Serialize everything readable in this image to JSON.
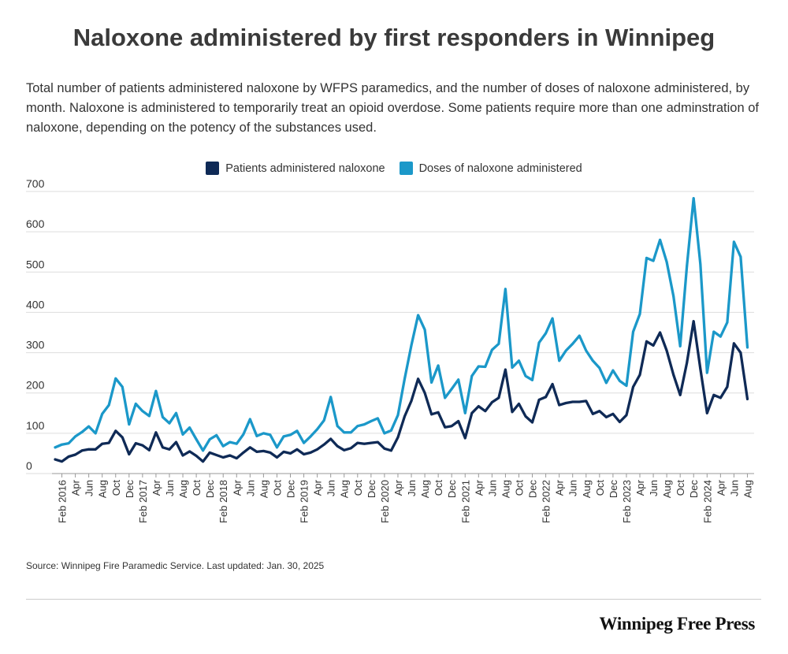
{
  "header": {
    "title": "Naloxone administered by first responders in Winnipeg",
    "subtitle": "Total number of patients administered naloxone by WFPS paramedics, and the number of doses of naloxone administered, by month.  Naloxone is administered to temporarily treat an opioid overdose. Some patients require more than one adminstration of naloxone, depending on the potency of the substances used."
  },
  "footer": {
    "source": "Source: Winnipeg Fire Paramedic Service. Last updated: Jan. 30, 2025",
    "brand": "Winnipeg Free Press"
  },
  "colors": {
    "patients": "#0f2a56",
    "doses": "#1b98c9",
    "grid": "#dddddd"
  },
  "chart_data": {
    "type": "line",
    "title": "Naloxone administered by first responders in Winnipeg",
    "xlabel": "",
    "ylabel": "",
    "ylim": [
      0,
      700
    ],
    "yticks": [
      0,
      100,
      200,
      300,
      400,
      500,
      600,
      700
    ],
    "grid": true,
    "legend_position": "top-center",
    "x_start": "2016-01",
    "x_end": "2024-09",
    "tick_labels": [
      {
        "month": "2016-02",
        "label": "Feb 2016"
      },
      {
        "month": "2016-04",
        "label": "Apr"
      },
      {
        "month": "2016-06",
        "label": "Jun"
      },
      {
        "month": "2016-08",
        "label": "Aug"
      },
      {
        "month": "2016-10",
        "label": "Oct"
      },
      {
        "month": "2016-12",
        "label": "Dec"
      },
      {
        "month": "2017-02",
        "label": "Feb 2017"
      },
      {
        "month": "2017-04",
        "label": "Apr"
      },
      {
        "month": "2017-06",
        "label": "Jun"
      },
      {
        "month": "2017-08",
        "label": "Aug"
      },
      {
        "month": "2017-10",
        "label": "Oct"
      },
      {
        "month": "2017-12",
        "label": "Dec"
      },
      {
        "month": "2018-02",
        "label": "Feb 2018"
      },
      {
        "month": "2018-04",
        "label": "Apr"
      },
      {
        "month": "2018-06",
        "label": "Jun"
      },
      {
        "month": "2018-08",
        "label": "Aug"
      },
      {
        "month": "2018-10",
        "label": "Oct"
      },
      {
        "month": "2018-12",
        "label": "Dec"
      },
      {
        "month": "2019-02",
        "label": "Feb 2019"
      },
      {
        "month": "2019-04",
        "label": "Apr"
      },
      {
        "month": "2019-06",
        "label": "Jun"
      },
      {
        "month": "2019-08",
        "label": "Aug"
      },
      {
        "month": "2019-10",
        "label": "Oct"
      },
      {
        "month": "2019-12",
        "label": "Dec"
      },
      {
        "month": "2020-02",
        "label": "Feb 2020"
      },
      {
        "month": "2020-04",
        "label": "Apr"
      },
      {
        "month": "2020-06",
        "label": "Jun"
      },
      {
        "month": "2020-08",
        "label": "Aug"
      },
      {
        "month": "2020-10",
        "label": "Oct"
      },
      {
        "month": "2020-12",
        "label": "Dec"
      },
      {
        "month": "2021-02",
        "label": "Feb 2021"
      },
      {
        "month": "2021-04",
        "label": "Apr"
      },
      {
        "month": "2021-06",
        "label": "Jun"
      },
      {
        "month": "2021-08",
        "label": "Aug"
      },
      {
        "month": "2021-10",
        "label": "Oct"
      },
      {
        "month": "2021-12",
        "label": "Dec"
      },
      {
        "month": "2022-02",
        "label": "Feb 2022"
      },
      {
        "month": "2022-04",
        "label": "Apr"
      },
      {
        "month": "2022-06",
        "label": "Jun"
      },
      {
        "month": "2022-08",
        "label": "Aug"
      },
      {
        "month": "2022-10",
        "label": "Oct"
      },
      {
        "month": "2022-12",
        "label": "Dec"
      },
      {
        "month": "2023-02",
        "label": "Feb 2023"
      },
      {
        "month": "2023-04",
        "label": "Apr"
      },
      {
        "month": "2023-06",
        "label": "Jun"
      },
      {
        "month": "2023-08",
        "label": "Aug"
      },
      {
        "month": "2023-10",
        "label": "Oct"
      },
      {
        "month": "2023-12",
        "label": "Dec"
      },
      {
        "month": "2024-02",
        "label": "Feb 2024"
      },
      {
        "month": "2024-04",
        "label": "Apr"
      },
      {
        "month": "2024-06",
        "label": "Jun"
      },
      {
        "month": "2024-08",
        "label": "Aug"
      }
    ],
    "series": [
      {
        "name": "Patients administered naloxone",
        "color": "#0f2a56",
        "points": [
          [
            "2016-01",
            35
          ],
          [
            "2016-02",
            30
          ],
          [
            "2016-03",
            42
          ],
          [
            "2016-04",
            47
          ],
          [
            "2016-05",
            57
          ],
          [
            "2016-06",
            60
          ],
          [
            "2016-07",
            60
          ],
          [
            "2016-08",
            74
          ],
          [
            "2016-09",
            76
          ],
          [
            "2016-10",
            106
          ],
          [
            "2016-11",
            90
          ],
          [
            "2016-12",
            48
          ],
          [
            "2017-01",
            75
          ],
          [
            "2017-02",
            70
          ],
          [
            "2017-03",
            58
          ],
          [
            "2017-04",
            102
          ],
          [
            "2017-05",
            65
          ],
          [
            "2017-06",
            60
          ],
          [
            "2017-07",
            78
          ],
          [
            "2017-08",
            45
          ],
          [
            "2017-09",
            55
          ],
          [
            "2017-10",
            44
          ],
          [
            "2017-11",
            30
          ],
          [
            "2017-12",
            52
          ],
          [
            "2018-01",
            46
          ],
          [
            "2018-02",
            40
          ],
          [
            "2018-03",
            45
          ],
          [
            "2018-04",
            38
          ],
          [
            "2018-05",
            52
          ],
          [
            "2018-06",
            65
          ],
          [
            "2018-07",
            54
          ],
          [
            "2018-08",
            56
          ],
          [
            "2018-09",
            52
          ],
          [
            "2018-10",
            40
          ],
          [
            "2018-11",
            54
          ],
          [
            "2018-12",
            50
          ],
          [
            "2019-01",
            60
          ],
          [
            "2019-02",
            48
          ],
          [
            "2019-03",
            52
          ],
          [
            "2019-04",
            60
          ],
          [
            "2019-05",
            72
          ],
          [
            "2019-06",
            86
          ],
          [
            "2019-07",
            68
          ],
          [
            "2019-08",
            58
          ],
          [
            "2019-09",
            63
          ],
          [
            "2019-10",
            76
          ],
          [
            "2019-11",
            74
          ],
          [
            "2019-12",
            76
          ],
          [
            "2020-01",
            78
          ],
          [
            "2020-02",
            62
          ],
          [
            "2020-03",
            57
          ],
          [
            "2020-04",
            90
          ],
          [
            "2020-05",
            142
          ],
          [
            "2020-06",
            180
          ],
          [
            "2020-07",
            235
          ],
          [
            "2020-08",
            200
          ],
          [
            "2020-09",
            147
          ],
          [
            "2020-10",
            152
          ],
          [
            "2020-11",
            115
          ],
          [
            "2020-12",
            118
          ],
          [
            "2021-01",
            130
          ],
          [
            "2021-02",
            88
          ],
          [
            "2021-03",
            150
          ],
          [
            "2021-04",
            167
          ],
          [
            "2021-05",
            155
          ],
          [
            "2021-06",
            177
          ],
          [
            "2021-07",
            188
          ],
          [
            "2021-08",
            258
          ],
          [
            "2021-09",
            153
          ],
          [
            "2021-10",
            173
          ],
          [
            "2021-11",
            142
          ],
          [
            "2021-12",
            127
          ],
          [
            "2022-01",
            183
          ],
          [
            "2022-02",
            190
          ],
          [
            "2022-03",
            222
          ],
          [
            "2022-04",
            170
          ],
          [
            "2022-05",
            175
          ],
          [
            "2022-06",
            178
          ],
          [
            "2022-07",
            178
          ],
          [
            "2022-08",
            180
          ],
          [
            "2022-09",
            148
          ],
          [
            "2022-10",
            155
          ],
          [
            "2022-11",
            140
          ],
          [
            "2022-12",
            148
          ],
          [
            "2023-01",
            128
          ],
          [
            "2023-02",
            145
          ],
          [
            "2023-03",
            215
          ],
          [
            "2023-04",
            245
          ],
          [
            "2023-05",
            328
          ],
          [
            "2023-06",
            318
          ],
          [
            "2023-07",
            350
          ],
          [
            "2023-08",
            305
          ],
          [
            "2023-09",
            245
          ],
          [
            "2023-10",
            195
          ],
          [
            "2023-11",
            275
          ],
          [
            "2023-12",
            378
          ],
          [
            "2024-01",
            260
          ],
          [
            "2024-02",
            150
          ],
          [
            "2024-03",
            195
          ],
          [
            "2024-04",
            188
          ],
          [
            "2024-05",
            215
          ],
          [
            "2024-06",
            323
          ],
          [
            "2024-07",
            300
          ],
          [
            "2024-08",
            185
          ]
        ]
      },
      {
        "name": "Doses of naloxone administered",
        "color": "#1b98c9",
        "points": [
          [
            "2016-01",
            65
          ],
          [
            "2016-02",
            72
          ],
          [
            "2016-03",
            75
          ],
          [
            "2016-04",
            92
          ],
          [
            "2016-05",
            103
          ],
          [
            "2016-06",
            117
          ],
          [
            "2016-07",
            100
          ],
          [
            "2016-08",
            148
          ],
          [
            "2016-09",
            170
          ],
          [
            "2016-10",
            236
          ],
          [
            "2016-11",
            215
          ],
          [
            "2016-12",
            122
          ],
          [
            "2017-01",
            173
          ],
          [
            "2017-02",
            155
          ],
          [
            "2017-03",
            143
          ],
          [
            "2017-04",
            205
          ],
          [
            "2017-05",
            140
          ],
          [
            "2017-06",
            125
          ],
          [
            "2017-07",
            150
          ],
          [
            "2017-08",
            97
          ],
          [
            "2017-09",
            114
          ],
          [
            "2017-10",
            85
          ],
          [
            "2017-11",
            57
          ],
          [
            "2017-12",
            85
          ],
          [
            "2018-01",
            95
          ],
          [
            "2018-02",
            68
          ],
          [
            "2018-03",
            78
          ],
          [
            "2018-04",
            74
          ],
          [
            "2018-05",
            97
          ],
          [
            "2018-06",
            135
          ],
          [
            "2018-07",
            93
          ],
          [
            "2018-08",
            100
          ],
          [
            "2018-09",
            96
          ],
          [
            "2018-10",
            65
          ],
          [
            "2018-11",
            92
          ],
          [
            "2018-12",
            96
          ],
          [
            "2019-01",
            106
          ],
          [
            "2019-02",
            76
          ],
          [
            "2019-03",
            92
          ],
          [
            "2019-04",
            110
          ],
          [
            "2019-05",
            132
          ],
          [
            "2019-06",
            190
          ],
          [
            "2019-07",
            118
          ],
          [
            "2019-08",
            102
          ],
          [
            "2019-09",
            102
          ],
          [
            "2019-10",
            118
          ],
          [
            "2019-11",
            122
          ],
          [
            "2019-12",
            130
          ],
          [
            "2020-01",
            137
          ],
          [
            "2020-02",
            100
          ],
          [
            "2020-03",
            107
          ],
          [
            "2020-04",
            145
          ],
          [
            "2020-05",
            235
          ],
          [
            "2020-06",
            318
          ],
          [
            "2020-07",
            393
          ],
          [
            "2020-08",
            357
          ],
          [
            "2020-09",
            226
          ],
          [
            "2020-10",
            268
          ],
          [
            "2020-11",
            188
          ],
          [
            "2020-12",
            210
          ],
          [
            "2021-01",
            233
          ],
          [
            "2021-02",
            150
          ],
          [
            "2021-03",
            242
          ],
          [
            "2021-04",
            266
          ],
          [
            "2021-05",
            265
          ],
          [
            "2021-06",
            307
          ],
          [
            "2021-07",
            322
          ],
          [
            "2021-08",
            458
          ],
          [
            "2021-09",
            263
          ],
          [
            "2021-10",
            280
          ],
          [
            "2021-11",
            242
          ],
          [
            "2021-12",
            232
          ],
          [
            "2022-01",
            325
          ],
          [
            "2022-02",
            348
          ],
          [
            "2022-03",
            385
          ],
          [
            "2022-04",
            280
          ],
          [
            "2022-05",
            305
          ],
          [
            "2022-06",
            322
          ],
          [
            "2022-07",
            342
          ],
          [
            "2022-08",
            305
          ],
          [
            "2022-09",
            280
          ],
          [
            "2022-10",
            262
          ],
          [
            "2022-11",
            225
          ],
          [
            "2022-12",
            256
          ],
          [
            "2023-01",
            230
          ],
          [
            "2023-02",
            218
          ],
          [
            "2023-03",
            352
          ],
          [
            "2023-04",
            396
          ],
          [
            "2023-05",
            535
          ],
          [
            "2023-06",
            528
          ],
          [
            "2023-07",
            580
          ],
          [
            "2023-08",
            525
          ],
          [
            "2023-09",
            440
          ],
          [
            "2023-10",
            316
          ],
          [
            "2023-11",
            515
          ],
          [
            "2023-12",
            683
          ],
          [
            "2024-01",
            520
          ],
          [
            "2024-02",
            250
          ],
          [
            "2024-03",
            352
          ],
          [
            "2024-04",
            340
          ],
          [
            "2024-05",
            375
          ],
          [
            "2024-06",
            575
          ],
          [
            "2024-07",
            538
          ],
          [
            "2024-08",
            313
          ]
        ]
      }
    ]
  }
}
